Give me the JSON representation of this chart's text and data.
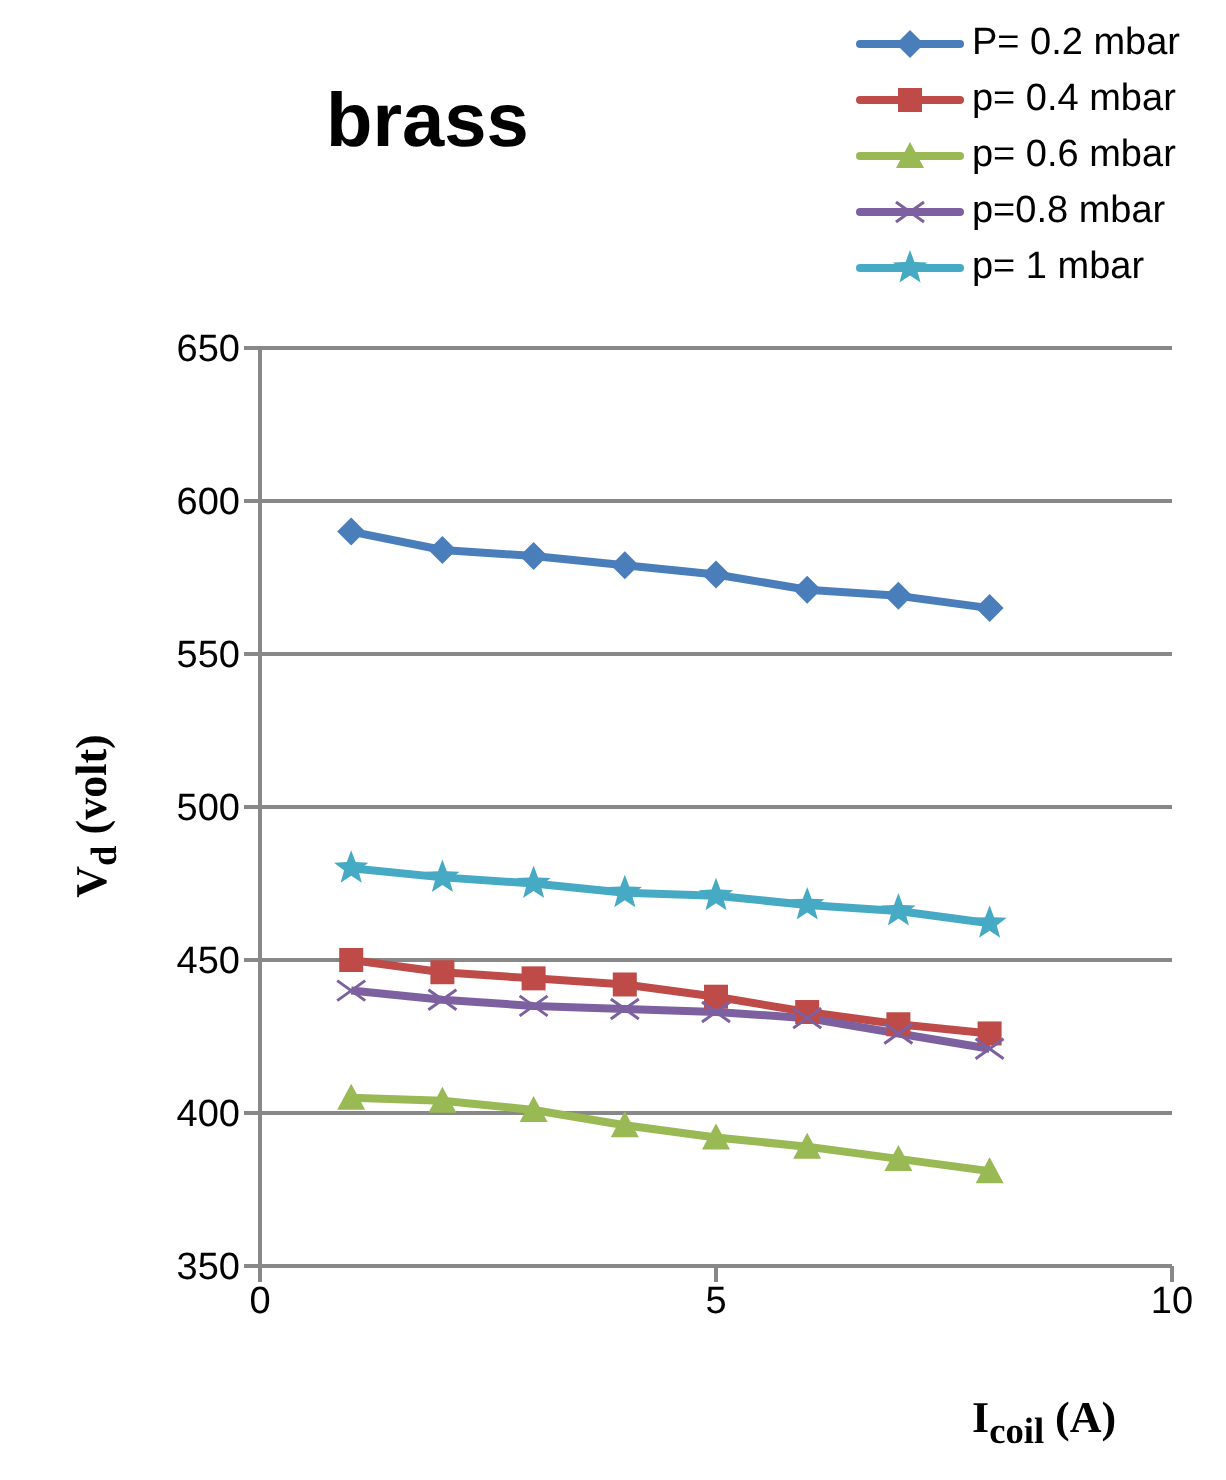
{
  "chart_data": {
    "type": "line",
    "title": "brass",
    "xlabel": "I$_{coil}$ (A)",
    "ylabel": "V$_{d}$ (volt)",
    "x": [
      1,
      2,
      3,
      4,
      5,
      6,
      7,
      8
    ],
    "xlim": [
      0,
      10
    ],
    "xticks": [
      0,
      5,
      10
    ],
    "ylim": [
      350,
      650
    ],
    "yticks": [
      350,
      400,
      450,
      500,
      550,
      600,
      650
    ],
    "grid": "y",
    "legend": "top right",
    "series": [
      {
        "name": "P= 0.2 mbar",
        "color": "#4a7ebb",
        "marker": "diamond",
        "values": [
          590,
          584,
          582,
          579,
          576,
          571,
          569,
          565
        ]
      },
      {
        "name": "p= 0.4 mbar",
        "color": "#be4b48",
        "marker": "square",
        "values": [
          450,
          446,
          444,
          442,
          438,
          433,
          429,
          426
        ]
      },
      {
        "name": "p= 0.6 mbar",
        "color": "#98b954",
        "marker": "triangle",
        "values": [
          405,
          404,
          401,
          396,
          392,
          389,
          385,
          381
        ]
      },
      {
        "name": "p=0.8 mbar",
        "color": "#7d60a0",
        "marker": "cross",
        "values": [
          440,
          437,
          435,
          434,
          433,
          431,
          426,
          421
        ]
      },
      {
        "name": "p= 1 mbar",
        "color": "#46aac5",
        "marker": "star",
        "values": [
          480,
          477,
          475,
          472,
          471,
          468,
          466,
          462
        ]
      }
    ]
  }
}
